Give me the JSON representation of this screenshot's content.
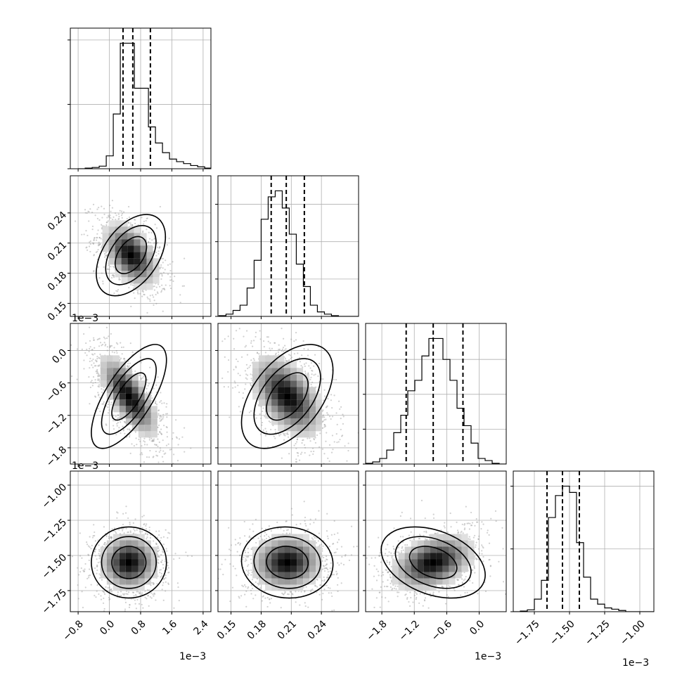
{
  "chart_data": {
    "type": "corner",
    "grid": true,
    "variables": [
      {
        "ticks": [
          -0.8,
          0.0,
          0.8,
          1.6,
          2.4
        ],
        "tick_labels": [
          "−0.8",
          "0.0",
          "0.8",
          "1.6",
          "2.4"
        ],
        "range": [
          -1.0,
          2.6
        ],
        "offset_label": "1e−3",
        "quantiles": [
          0.35,
          0.6,
          1.05
        ],
        "hist": {
          "edges_start": -0.8,
          "bin_width": 0.18,
          "counts": [
            0,
            1,
            2,
            4,
            20,
            85,
            195,
            195,
            125,
            125,
            65,
            40,
            25,
            15,
            11,
            8,
            5,
            3,
            1,
            0
          ]
        },
        "hist_y_ticks": [
          0,
          100,
          200
        ]
      },
      {
        "ticks": [
          0.15,
          0.18,
          0.21,
          0.24
        ],
        "tick_labels": [
          "0.15",
          "0.18",
          "0.21",
          "0.24"
        ],
        "range": [
          0.137,
          0.277
        ],
        "offset_label": "",
        "quantiles": [
          0.19,
          0.205,
          0.223
        ],
        "hist": {
          "edges_start": 0.138,
          "bin_width": 0.007,
          "counts": [
            1,
            3,
            8,
            15,
            38,
            75,
            130,
            160,
            168,
            145,
            110,
            70,
            40,
            15,
            6,
            3,
            1,
            0,
            0,
            0
          ]
        },
        "hist_y_ticks": [
          0,
          50,
          100,
          150
        ]
      },
      {
        "ticks": [
          -1.8,
          -1.2,
          -0.6,
          0.0
        ],
        "tick_labels": [
          "−1.8",
          "−1.2",
          "−0.6",
          "0.0"
        ],
        "range": [
          -2.1,
          0.5
        ],
        "offset_label": "1e−3",
        "quantiles": [
          -1.35,
          -0.85,
          -0.3
        ],
        "hist": {
          "edges_start": -2.1,
          "bin_width": 0.13,
          "counts": [
            1,
            3,
            8,
            20,
            45,
            70,
            105,
            120,
            155,
            180,
            180,
            150,
            120,
            80,
            55,
            30,
            8,
            5,
            1,
            0
          ]
        },
        "hist_y_ticks": [
          0,
          50,
          100,
          150
        ]
      },
      {
        "ticks": [
          -1.75,
          -1.5,
          -1.25,
          -1.0
        ],
        "tick_labels": [
          "−1.75",
          "−1.50",
          "−1.25",
          "−1.00"
        ],
        "range": [
          -1.9,
          -0.9
        ],
        "offset_label": "1e−3",
        "quantiles": [
          -1.66,
          -1.55,
          -1.43
        ],
        "hist": {
          "edges_start": -1.9,
          "bin_width": 0.05,
          "counts": [
            0,
            1,
            3,
            20,
            50,
            150,
            185,
            200,
            190,
            110,
            55,
            20,
            12,
            6,
            4,
            2,
            0,
            0,
            0,
            0
          ]
        },
        "hist_y_ticks": [
          0,
          100,
          200
        ]
      }
    ],
    "pairs": [
      {
        "x": 0,
        "y": 1,
        "mean": [
          0.55,
          0.198
        ],
        "sd": [
          0.35,
          0.016
        ],
        "rho": -0.45,
        "spread": [
          0.9,
          0.03
        ]
      },
      {
        "x": 0,
        "y": 2,
        "mean": [
          0.5,
          -0.85
        ],
        "sd": [
          0.38,
          0.38
        ],
        "rho": -0.7,
        "spread": [
          1.2,
          0.9
        ]
      },
      {
        "x": 1,
        "y": 2,
        "mean": [
          0.206,
          -0.85
        ],
        "sd": [
          0.018,
          0.38
        ],
        "rho": -0.5,
        "spread": [
          0.04,
          0.9
        ]
      },
      {
        "x": 0,
        "y": 3,
        "mean": [
          0.5,
          -1.55
        ],
        "sd": [
          0.38,
          0.1
        ],
        "rho": 0.0,
        "spread": [
          1.2,
          0.3
        ]
      },
      {
        "x": 1,
        "y": 3,
        "mean": [
          0.206,
          -1.55
        ],
        "sd": [
          0.018,
          0.1
        ],
        "rho": 0.05,
        "spread": [
          0.04,
          0.3
        ]
      },
      {
        "x": 2,
        "y": 3,
        "mean": [
          -0.85,
          -1.55
        ],
        "sd": [
          0.38,
          0.1
        ],
        "rho": 0.35,
        "spread": [
          1.0,
          0.3
        ]
      }
    ]
  }
}
